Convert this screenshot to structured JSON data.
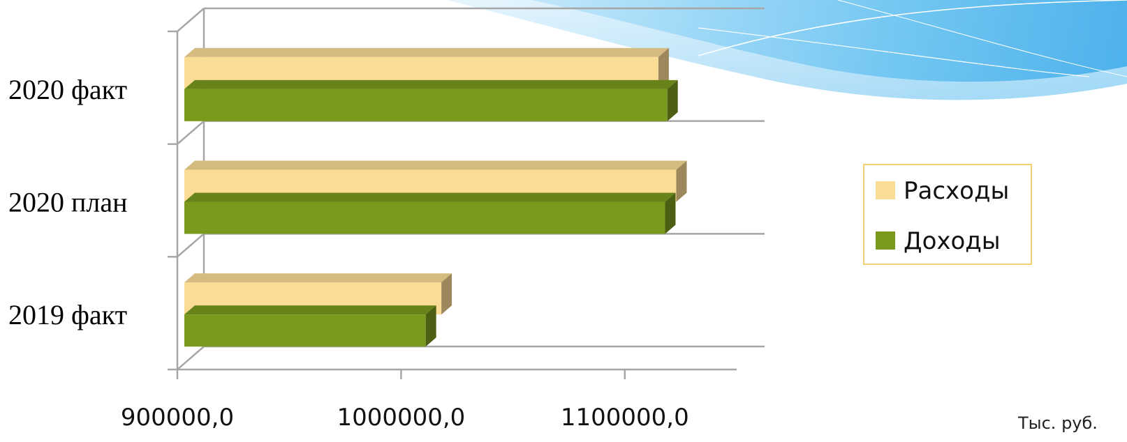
{
  "chart_data": {
    "type": "bar",
    "orientation": "horizontal",
    "style": "3d",
    "categories": [
      "2019 факт",
      "2020 план",
      "2020 факт"
    ],
    "series": [
      {
        "name": "Доходы",
        "values": [
          1011000,
          1118000,
          1119000
        ],
        "color": "#7a9a1e"
      },
      {
        "name": "Расходы",
        "values": [
          1018000,
          1123000,
          1115000
        ],
        "color": "#fbdc95"
      }
    ],
    "xlim": [
      900000,
      1150000
    ],
    "xticks": [
      900000,
      1000000,
      1100000
    ],
    "xtick_labels": [
      "900000,0",
      "1000000,0",
      "1100000,0"
    ],
    "unit_label": "Тыс. руб.",
    "legend_position": "right",
    "grid": true
  },
  "colors": {
    "income": "#7a9a1e",
    "expense": "#fbdc95",
    "legend_border": "#f0d070",
    "grid": "#a6a6a6",
    "decor_wave": "#4fb3ea"
  }
}
